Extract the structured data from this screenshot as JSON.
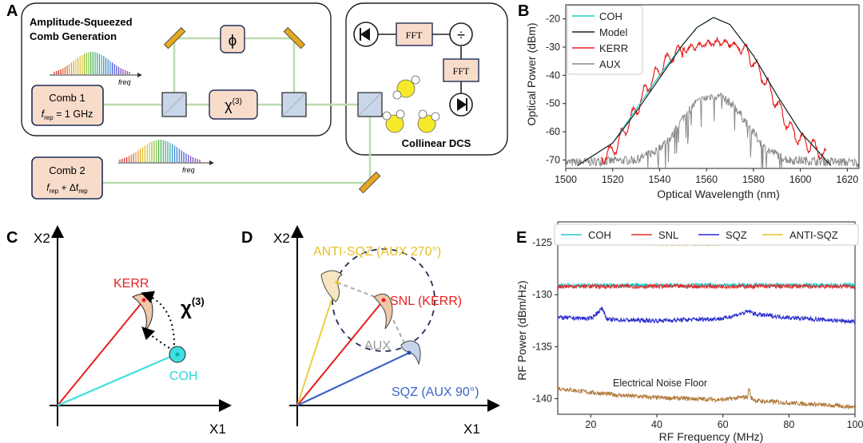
{
  "panels": {
    "A": "A",
    "B": "B",
    "C": "C",
    "D": "D",
    "E": "E"
  },
  "panel_a": {
    "box_title_line1": "Amplitude-Squeezed",
    "box_title_line2": "Comb Generation",
    "freq_label": "freq",
    "comb1_line1": "Comb 1",
    "comb1_line2_f": "f",
    "comb1_line2_sub": "rep",
    "comb1_line2_rest": " = 1 GHz",
    "comb2_line1": "Comb 2",
    "comb2_line2_f": "f",
    "comb2_line2_sub": "rep",
    "comb2_line2_rest": " + Δf",
    "comb2_line2_sub2": "rep",
    "phi_label": "ϕ",
    "chi_label": "χ",
    "chi_sup": "(3)",
    "fft1": "FFT",
    "fft2": "FFT",
    "divide": "÷",
    "dcs_label": "Collinear DCS"
  },
  "panel_c": {
    "y_axis": "X2",
    "x_axis": "X1",
    "kerr": "KERR",
    "coh": "COH",
    "chi": "χ",
    "chi_sup": "(3)"
  },
  "panel_d": {
    "y_axis": "X2",
    "x_axis": "X1",
    "anti_sqz": "ANTI-SQZ (AUX 270°)",
    "snl": "SNL (KERR)",
    "aux": "AUX",
    "sqz": "SQZ (AUX 90°)"
  },
  "colors": {
    "coh": "#1ec8c8",
    "model": "#222222",
    "kerr": "#e81f1f",
    "aux": "#8a8a8a",
    "snl": "#e03030",
    "sqz": "#2a2ad0",
    "anti_sqz": "#e8c02a",
    "floor": "#b07a3a"
  },
  "chart_data": [
    {
      "type": "line",
      "panel": "B",
      "xlabel": "Optical Wavelength (nm)",
      "ylabel": "Optical Power (dBm)",
      "xlim": [
        1500,
        1625
      ],
      "ylim": [
        -73,
        -15
      ],
      "xticks": [
        1500,
        1520,
        1540,
        1560,
        1580,
        1600,
        1620
      ],
      "yticks": [
        -70,
        -60,
        -50,
        -40,
        -30,
        -20
      ],
      "legend_position": "top-left",
      "series": [
        {
          "name": "COH",
          "x": [
            1505,
            1520,
            1530,
            1540,
            1550,
            1556,
            1563,
            1570,
            1580,
            1590,
            1600,
            1613
          ],
          "values": [
            -72,
            -64,
            -52,
            -40,
            -29,
            -23,
            -19.5,
            -22,
            -33,
            -47,
            -60,
            -72
          ]
        },
        {
          "name": "Model",
          "x": [
            1505,
            1520,
            1530,
            1540,
            1550,
            1556,
            1563,
            1570,
            1580,
            1590,
            1600,
            1613
          ],
          "values": [
            -72,
            -64,
            -53,
            -41,
            -29,
            -23,
            -19.5,
            -22,
            -33,
            -47,
            -60,
            -72
          ]
        },
        {
          "name": "KERR",
          "x": [
            1515,
            1520,
            1525,
            1530,
            1535,
            1540,
            1545,
            1550,
            1555,
            1560,
            1565,
            1570,
            1575,
            1580,
            1585,
            1590,
            1595,
            1600,
            1605,
            1611
          ],
          "values": [
            -69,
            -67,
            -60,
            -52,
            -44,
            -38,
            -33,
            -31,
            -30,
            -29,
            -28,
            -29,
            -30,
            -35,
            -42,
            -50,
            -58,
            -63,
            -65,
            -69
          ]
        },
        {
          "name": "AUX",
          "x": [
            1500,
            1530,
            1538,
            1545,
            1550,
            1555,
            1560,
            1563,
            1567,
            1572,
            1578,
            1585,
            1595,
            1625
          ],
          "values": [
            -71,
            -70,
            -67,
            -62,
            -55,
            -50,
            -48,
            -47,
            -48,
            -51,
            -58,
            -66,
            -70,
            -71
          ]
        }
      ]
    },
    {
      "type": "line",
      "panel": "E",
      "xlabel": "RF Frequency (MHz)",
      "ylabel": "RF Power (dBm/Hz)",
      "xlim": [
        10,
        100
      ],
      "ylim": [
        -141.5,
        -123
      ],
      "xticks": [
        20,
        40,
        60,
        80,
        100
      ],
      "yticks": [
        -140,
        -135,
        -130,
        -125
      ],
      "legend_position": "top",
      "annotation": "Electrical Noise Floor",
      "series": [
        {
          "name": "COH",
          "x": [
            10,
            100
          ],
          "values": [
            -129.1,
            -129.1
          ]
        },
        {
          "name": "SNL",
          "x": [
            10,
            100
          ],
          "values": [
            -129.2,
            -129.2
          ]
        },
        {
          "name": "SQZ",
          "x": [
            10,
            20,
            23.5,
            25,
            40,
            60,
            68,
            70,
            80,
            100
          ],
          "values": [
            -132.2,
            -132.3,
            -131.3,
            -132.4,
            -132.5,
            -132.3,
            -131.6,
            -131.9,
            -132.2,
            -132.6
          ]
        },
        {
          "name": "ANTI-SQZ",
          "x": [
            10,
            40,
            60,
            70,
            80,
            90,
            100
          ],
          "values": [
            -125,
            -125.1,
            -125.1,
            -124.9,
            -124.8,
            -124.6,
            -124.9
          ]
        },
        {
          "x": [
            10,
            20,
            30,
            40,
            50,
            60,
            68,
            70,
            80,
            90,
            100
          ],
          "values": [
            -139,
            -139.4,
            -139.7,
            -139.9,
            -140.0,
            -140.1,
            -139.8,
            -140.2,
            -140.4,
            -140.6,
            -140.8
          ]
        }
      ]
    }
  ]
}
